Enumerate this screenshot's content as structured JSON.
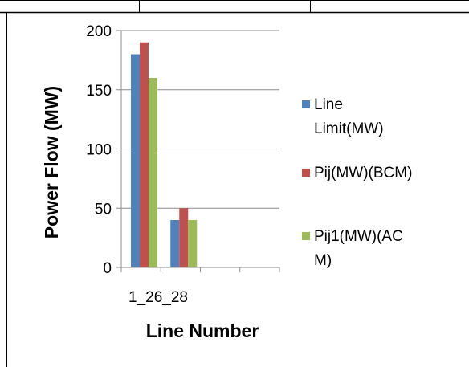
{
  "chart_data": {
    "type": "bar",
    "xlabel": "Line Number",
    "ylabel": "Power Flow (MW)",
    "ylim": [
      0,
      200
    ],
    "yticks": [
      0,
      50,
      100,
      150,
      200
    ],
    "categories": [
      "1_2",
      "6_28",
      "",
      ""
    ],
    "tick_labels": [
      "1_26_28"
    ],
    "grid": true,
    "legend_position": "right",
    "series": [
      {
        "name": "Line Limit(MW)",
        "name_lines": [
          "Line",
          "Limit(MW)"
        ],
        "color": "#4f81bd",
        "values": [
          180,
          40,
          null,
          null
        ]
      },
      {
        "name": "Pij(MW)(BCM)",
        "name_lines": [
          "Pij(MW)(BCM)"
        ],
        "color": "#c0504d",
        "values": [
          190,
          50,
          null,
          null
        ]
      },
      {
        "name": "Pij1(MW)(ACM)",
        "name_lines": [
          "Pij1(MW)(AC",
          "M)"
        ],
        "color": "#9bbb59",
        "values": [
          160,
          40,
          null,
          null
        ]
      }
    ]
  }
}
